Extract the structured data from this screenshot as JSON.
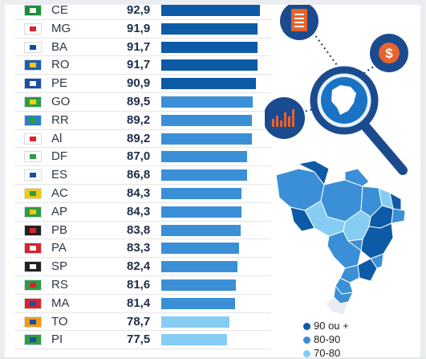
{
  "chart_data": {
    "type": "bar",
    "orientation": "horizontal",
    "categories": [
      "CE",
      "MG",
      "BA",
      "RO",
      "PE",
      "GO",
      "RR",
      "Al",
      "DF",
      "ES",
      "AC",
      "AP",
      "PB",
      "PA",
      "SP",
      "RS",
      "MA",
      "TO",
      "PI"
    ],
    "value_labels": [
      "92,9",
      "91,9",
      "91,7",
      "91,7",
      "90,9",
      "89,5",
      "89,2",
      "89,2",
      "87,0",
      "86,8",
      "84,3",
      "84,3",
      "83,8",
      "83,3",
      "82,4",
      "81,6",
      "81,4",
      "78,7",
      "77,5"
    ],
    "values": [
      92.9,
      91.9,
      91.7,
      91.7,
      90.9,
      89.5,
      89.2,
      89.2,
      87.0,
      86.8,
      84.3,
      84.3,
      83.8,
      83.3,
      82.4,
      81.6,
      81.4,
      78.7,
      77.5
    ],
    "colors": {
      "high": "#0d5aa7",
      "mid": "#3b8fd6",
      "low": "#85cdf3"
    },
    "legend": [
      {
        "label": "90 ou +",
        "color": "#0d5aa7"
      },
      {
        "label": "80-90",
        "color": "#3b8fd6"
      },
      {
        "label": "70-80",
        "color": "#85cdf3"
      }
    ]
  },
  "icons": {
    "document": "document-icon",
    "money": "dollar-icon",
    "chart": "bar-chart-icon",
    "magnifier": "magnifier-icon",
    "map": "brazil-map"
  }
}
